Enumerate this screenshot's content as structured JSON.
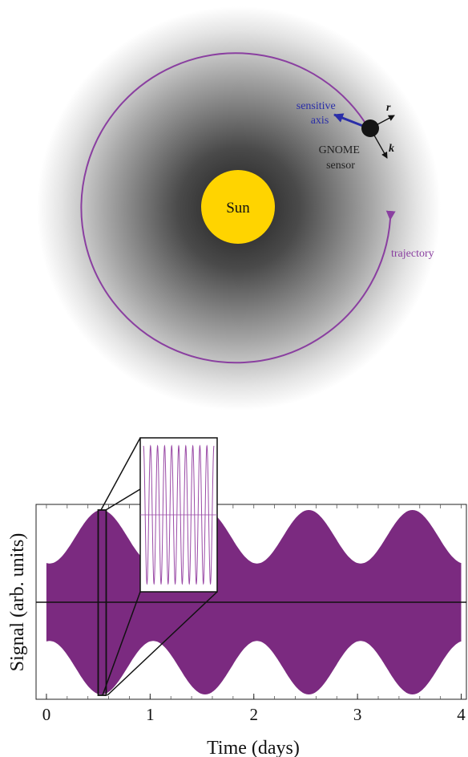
{
  "top_diagram": {
    "sun_label": "Sun",
    "sensitive_axis_label": [
      "sensitive",
      "axis"
    ],
    "sensor_label": [
      "GNOME",
      "sensor"
    ],
    "r_label": "r",
    "k_label": "k",
    "trajectory_label": "trajectory",
    "colors": {
      "sun": "#ffd400",
      "trajectory": "#8a3fa0",
      "sensitive_axis": "#2a2ea8",
      "halo_center": "#1e1e1e"
    }
  },
  "chart_data": {
    "type": "area",
    "title": "",
    "xlabel": "Time (days)",
    "ylabel": "Signal (arb. units)",
    "xlim": [
      -0.1,
      4.05
    ],
    "xticks": [
      "0",
      "1",
      "2",
      "3",
      "4"
    ],
    "series": [
      {
        "values": {
          "envelope_period_days": 1.0,
          "envelope_peak_day": 0.53,
          "envelope_max": 1.0,
          "envelope_min": 0.42,
          "start_day": 0.0,
          "end_day": 4.0
        }
      }
    ],
    "color": "#7b2a80",
    "zero_line": true,
    "inset": {
      "zoom_center_day": 0.53,
      "oscillation_count": 10
    }
  }
}
